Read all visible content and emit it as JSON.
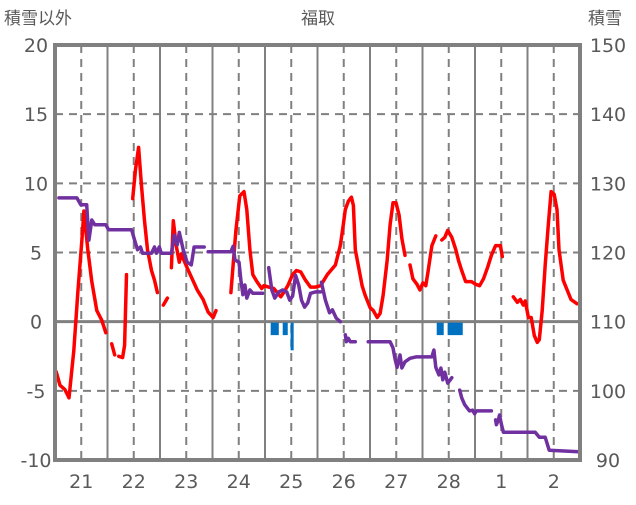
{
  "chart_data": {
    "type": "line",
    "title": "福取",
    "ylabel_left": "積雪以外",
    "ylabel_right": "積雪",
    "ylim_left": [
      -10,
      20
    ],
    "ylim_right": [
      90,
      150
    ],
    "yticks_left": [
      "20",
      "15",
      "10",
      "5",
      "0",
      "-5",
      "-10"
    ],
    "yticks_left_values": [
      20,
      15,
      10,
      5,
      0,
      -5,
      -10
    ],
    "yticks_right": [
      "150",
      "140",
      "130",
      "120",
      "110",
      "100",
      "90"
    ],
    "yticks_right_values": [
      150,
      140,
      130,
      120,
      110,
      100,
      90
    ],
    "xlim_hours": [
      0,
      240
    ],
    "xticks": [
      "21",
      "22",
      "23",
      "24",
      "25",
      "26",
      "27",
      "28",
      "1",
      "2"
    ],
    "xticks_hours": [
      12,
      36,
      60,
      84,
      108,
      132,
      156,
      180,
      204,
      228
    ],
    "grid": true,
    "colors": {
      "temperature": "#FF0000",
      "snow_depth": "#7030A0",
      "precip": "#0070C0",
      "axis": "#808080",
      "grid": "#808080"
    },
    "series": [
      {
        "name": "temperature",
        "axis": "left",
        "points": [
          [
            0.5,
            -3.6
          ],
          [
            2.3,
            -4.6
          ],
          [
            4.5,
            -4.9
          ],
          [
            6.4,
            -5.5
          ],
          [
            8.6,
            -2.1
          ],
          [
            10.5,
            2.3
          ],
          [
            12.3,
            5.9
          ],
          [
            13.2,
            8.0
          ],
          [
            15,
            5.2
          ],
          [
            16.8,
            2.9
          ],
          [
            19.1,
            0.8
          ],
          [
            21.4,
            0.1
          ],
          [
            23.2,
            -0.8
          ],
          null,
          [
            25.9,
            -1.6
          ],
          [
            27.3,
            -2.4
          ],
          null,
          [
            29.1,
            -2.5
          ],
          [
            30.9,
            -2.6
          ],
          [
            31.8,
            -1.7
          ],
          [
            32.7,
            3.4
          ],
          null,
          [
            35.5,
            8.9
          ],
          [
            36.8,
            11.0
          ],
          [
            38.2,
            12.6
          ],
          [
            39.5,
            9.9
          ],
          [
            40.9,
            7.3
          ],
          [
            42.3,
            5.2
          ],
          [
            44.1,
            3.7
          ],
          [
            45.5,
            3.0
          ],
          [
            46.8,
            2.1
          ],
          null,
          [
            49.5,
            1.2
          ],
          [
            51.4,
            1.7
          ],
          null,
          [
            53.2,
            3.9
          ],
          [
            54.1,
            7.3
          ],
          [
            55.4,
            5.5
          ],
          [
            56.8,
            4.3
          ],
          [
            57.7,
            4.9
          ],
          [
            60.4,
            3.9
          ],
          [
            65,
            2.3
          ],
          [
            67.7,
            1.6
          ],
          [
            70,
            0.7
          ],
          [
            72.3,
            0.3
          ],
          [
            73.6,
            0.8
          ],
          null,
          [
            80.4,
            2.1
          ],
          [
            82.7,
            6.6
          ],
          [
            84.5,
            9.1
          ],
          [
            86.4,
            9.4
          ],
          [
            87.7,
            8.1
          ],
          [
            89.1,
            5.2
          ],
          [
            90.4,
            3.4
          ],
          [
            92.3,
            2.9
          ],
          [
            94.5,
            2.4
          ],
          [
            95.5,
            2.6
          ],
          [
            97.7,
            2.5
          ],
          [
            100,
            2.4
          ],
          [
            103.2,
            1.8
          ],
          [
            104.5,
            2.1
          ],
          [
            106.4,
            2.6
          ],
          [
            108.6,
            3.4
          ],
          [
            110.4,
            3.7
          ],
          [
            112.3,
            3.6
          ],
          [
            114.5,
            3.0
          ],
          [
            116.8,
            2.5
          ],
          [
            119.1,
            2.5
          ],
          [
            121.4,
            2.6
          ],
          [
            124.5,
            3.4
          ],
          [
            128.2,
            4.1
          ],
          [
            130.4,
            5.5
          ],
          [
            131.8,
            7.0
          ],
          [
            132.7,
            8.1
          ],
          [
            134.1,
            8.7
          ],
          [
            135.5,
            9.0
          ],
          [
            136.4,
            8.4
          ],
          [
            137.3,
            5.2
          ],
          [
            138.6,
            4.1
          ],
          [
            140.4,
            2.6
          ],
          [
            141.8,
            1.9
          ],
          [
            144.1,
            1.0
          ],
          [
            145.5,
            0.8
          ],
          [
            147.3,
            0.3
          ],
          [
            148.6,
            0.6
          ],
          [
            150,
            1.9
          ],
          [
            151.8,
            4.4
          ],
          [
            153.2,
            7.0
          ],
          [
            154.5,
            8.6
          ],
          [
            155.9,
            8.6
          ],
          [
            157.3,
            7.7
          ],
          [
            158.6,
            6.0
          ],
          [
            160,
            4.8
          ],
          null,
          [
            162.3,
            4.1
          ],
          [
            163.6,
            3.1
          ],
          [
            165.5,
            2.7
          ],
          [
            166.8,
            2.3
          ],
          [
            168.2,
            2.8
          ],
          [
            169.5,
            2.6
          ],
          [
            170.5,
            3.6
          ],
          [
            172.3,
            5.5
          ],
          [
            174.1,
            6.2
          ],
          null,
          [
            176.8,
            5.9
          ],
          [
            178.2,
            6.1
          ],
          [
            179.5,
            6.6
          ],
          [
            181.4,
            6.1
          ],
          [
            183.2,
            5.2
          ],
          [
            184.5,
            4.4
          ],
          [
            185.9,
            3.7
          ],
          [
            187.7,
            2.9
          ],
          [
            190.4,
            2.9
          ],
          [
            192.3,
            2.7
          ],
          [
            194.1,
            2.6
          ],
          [
            195.9,
            3.1
          ],
          [
            197.7,
            3.9
          ],
          [
            199.5,
            4.8
          ],
          [
            201.4,
            5.5
          ],
          [
            203.6,
            5.5
          ],
          [
            204.5,
            4.7
          ],
          null,
          [
            209.5,
            1.8
          ],
          [
            211.4,
            1.4
          ],
          [
            212.7,
            1.6
          ],
          [
            214.1,
            1.2
          ],
          [
            215,
            1.5
          ],
          [
            216.4,
            0.3
          ],
          [
            217.7,
            0.3
          ],
          [
            219.1,
            -1.0
          ],
          [
            220.5,
            -1.5
          ],
          [
            221.4,
            -1.3
          ],
          [
            222.7,
            0.8
          ],
          [
            224.1,
            4.1
          ],
          [
            225.5,
            7.0
          ],
          [
            226.8,
            9.4
          ],
          [
            228.2,
            9.2
          ],
          [
            229.5,
            8.1
          ],
          [
            230.4,
            5.2
          ],
          [
            232.3,
            3.0
          ],
          [
            234.1,
            2.3
          ],
          [
            235.9,
            1.6
          ],
          [
            238.6,
            1.3
          ]
        ]
      },
      {
        "name": "snow_depth",
        "axis": "right",
        "points": [
          [
            1.8,
            127.9
          ],
          [
            10,
            127.9
          ],
          [
            11.8,
            126.9
          ],
          [
            14.5,
            126.9
          ],
          [
            15.5,
            121.8
          ],
          [
            16.8,
            124.7
          ],
          [
            18.2,
            124.0
          ],
          [
            23.2,
            124.0
          ],
          [
            24.5,
            123.3
          ],
          [
            35,
            123.3
          ],
          [
            36.4,
            121.8
          ],
          [
            37.7,
            120.4
          ],
          [
            39.1,
            120.8
          ],
          [
            40,
            119.9
          ],
          [
            44.1,
            119.9
          ],
          [
            45.5,
            120.8
          ],
          [
            46.4,
            119.9
          ],
          [
            47.7,
            120.8
          ],
          [
            48.6,
            119.9
          ],
          [
            53.2,
            119.9
          ],
          [
            54.5,
            122.5
          ],
          [
            55.9,
            121.1
          ],
          [
            56.8,
            122.9
          ],
          [
            58.6,
            120.4
          ],
          [
            60.4,
            118.6
          ],
          [
            62.3,
            118.2
          ],
          [
            63.6,
            120.8
          ],
          [
            68.2,
            120.8
          ],
          null,
          [
            70,
            120.1
          ],
          [
            80.4,
            120.1
          ],
          [
            81.4,
            120.9
          ],
          [
            82.3,
            118.9
          ],
          [
            84.1,
            118.6
          ],
          [
            85,
            116.0
          ],
          [
            85.9,
            113.9
          ],
          [
            86.8,
            115.3
          ],
          [
            87.7,
            113.4
          ],
          [
            89.1,
            114.6
          ],
          [
            90.4,
            114.1
          ],
          [
            95,
            114.1
          ],
          null,
          [
            97.7,
            117.8
          ],
          [
            99.1,
            114.6
          ],
          [
            100.5,
            113.4
          ],
          [
            102.3,
            114.3
          ],
          [
            104.1,
            114.6
          ],
          [
            105.9,
            114.3
          ],
          [
            107.3,
            113.1
          ],
          [
            108.6,
            113.7
          ],
          [
            110,
            116.7
          ],
          [
            111.4,
            115.3
          ],
          [
            112.7,
            113.1
          ],
          [
            114.1,
            112.1
          ],
          [
            115.5,
            112.7
          ],
          [
            116.8,
            114.1
          ],
          [
            119.1,
            114.3
          ],
          [
            121.4,
            114.3
          ],
          null,
          [
            121.8,
            115.7
          ],
          [
            123.6,
            113.1
          ],
          [
            125.5,
            111.3
          ],
          [
            126.8,
            111.7
          ],
          [
            128.6,
            110.5
          ],
          [
            130.4,
            110.0
          ],
          null,
          [
            132.7,
            108.1
          ],
          [
            133.2,
            107.1
          ],
          [
            134.1,
            107.6
          ],
          [
            135,
            107.1
          ],
          [
            137.3,
            107.1
          ],
          null,
          [
            143.2,
            107.1
          ],
          [
            153.2,
            107.1
          ],
          [
            154.5,
            106.2
          ],
          [
            155.5,
            104.5
          ],
          [
            156.4,
            103.4
          ],
          [
            157.7,
            105.2
          ],
          [
            158.6,
            103.3
          ],
          [
            160,
            104.2
          ],
          [
            162.3,
            104.7
          ],
          [
            165,
            104.9
          ],
          [
            172.3,
            104.9
          ],
          [
            173.2,
            105.9
          ],
          [
            174.1,
            103.4
          ],
          [
            175.5,
            102.3
          ],
          [
            176.4,
            103.3
          ],
          [
            177.3,
            101.6
          ],
          [
            178.2,
            102.7
          ],
          [
            179.5,
            101.1
          ],
          [
            181.4,
            101.9
          ],
          null,
          [
            185,
            100.1
          ],
          [
            185.9,
            99.0
          ],
          [
            187.3,
            98.0
          ],
          [
            189.5,
            97.1
          ],
          [
            190.9,
            97.2
          ],
          [
            191.8,
            96.7
          ],
          [
            192.7,
            97.1
          ],
          [
            199.5,
            97.1
          ],
          null,
          [
            201.4,
            95.8
          ],
          [
            201.8,
            95.1
          ],
          [
            202.7,
            95.8
          ],
          [
            203.2,
            96.5
          ],
          [
            204.1,
            95.1
          ],
          [
            205,
            94.0
          ],
          [
            207.7,
            94.0
          ],
          [
            219.5,
            94.0
          ],
          [
            221.4,
            93.3
          ],
          [
            224.1,
            93.3
          ],
          [
            225.9,
            91.4
          ],
          [
            239.5,
            91.2
          ]
        ]
      }
    ],
    "bars": {
      "name": "precip",
      "axis": "left",
      "items": [
        [
          98.6,
          102.3,
          -0.9
        ],
        [
          104.1,
          106.4,
          -0.9
        ],
        [
          107.7,
          109.1,
          -2.0
        ],
        [
          174.5,
          177.7,
          -0.9
        ],
        [
          179.5,
          186.4,
          -0.9
        ]
      ]
    }
  }
}
